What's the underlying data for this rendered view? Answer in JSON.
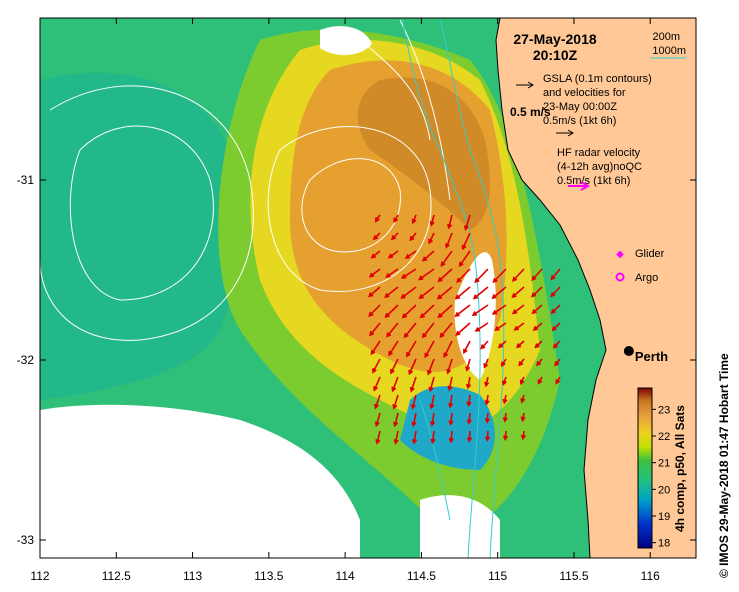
{
  "header": {
    "date": "27-May-2018",
    "time": "20:10Z"
  },
  "bathymetry": {
    "contour1": "200m",
    "contour2": "1000m",
    "line_color": "#33cccc"
  },
  "gsla": {
    "line1": "GSLA (0.1m contours)",
    "line2": "and velocities for",
    "line3": "23-May 00:00Z",
    "line4": "0.5m/s (1kt 6h)",
    "scale_label": "0.5 m/s"
  },
  "hf_radar": {
    "line1": "HF radar velocity",
    "line2": "(4-12h avg)noQC",
    "line3": "0.5m/s (1kt 6h)",
    "color": "#ff00ff",
    "vector_color": "#e00000"
  },
  "legend": {
    "glider": "Glider",
    "argo": "Argo",
    "marker_color": "#ff00ff"
  },
  "city": {
    "name": "Perth",
    "lon": 115.86,
    "lat": -31.95
  },
  "axes": {
    "x_ticks": [
      "112",
      "112.5",
      "113",
      "113.5",
      "114",
      "114.5",
      "115",
      "115.5",
      "116"
    ],
    "y_ticks": [
      "-31",
      "-32",
      "-33"
    ],
    "xlim": [
      112,
      116.3
    ],
    "ylim": [
      -33.1,
      -30.1
    ]
  },
  "colorbar": {
    "label": "4h comp, p50, All Sats",
    "ticks": [
      "18",
      "19",
      "20",
      "21",
      "22",
      "23"
    ],
    "range": [
      17.8,
      23.8
    ]
  },
  "credit": "© IMOS 29-May-2018 01:47 Hobart Time",
  "colors": {
    "land": "#ffc896",
    "cloud": "#ffffff",
    "contour": "#ffffff",
    "coast": "#000000"
  }
}
